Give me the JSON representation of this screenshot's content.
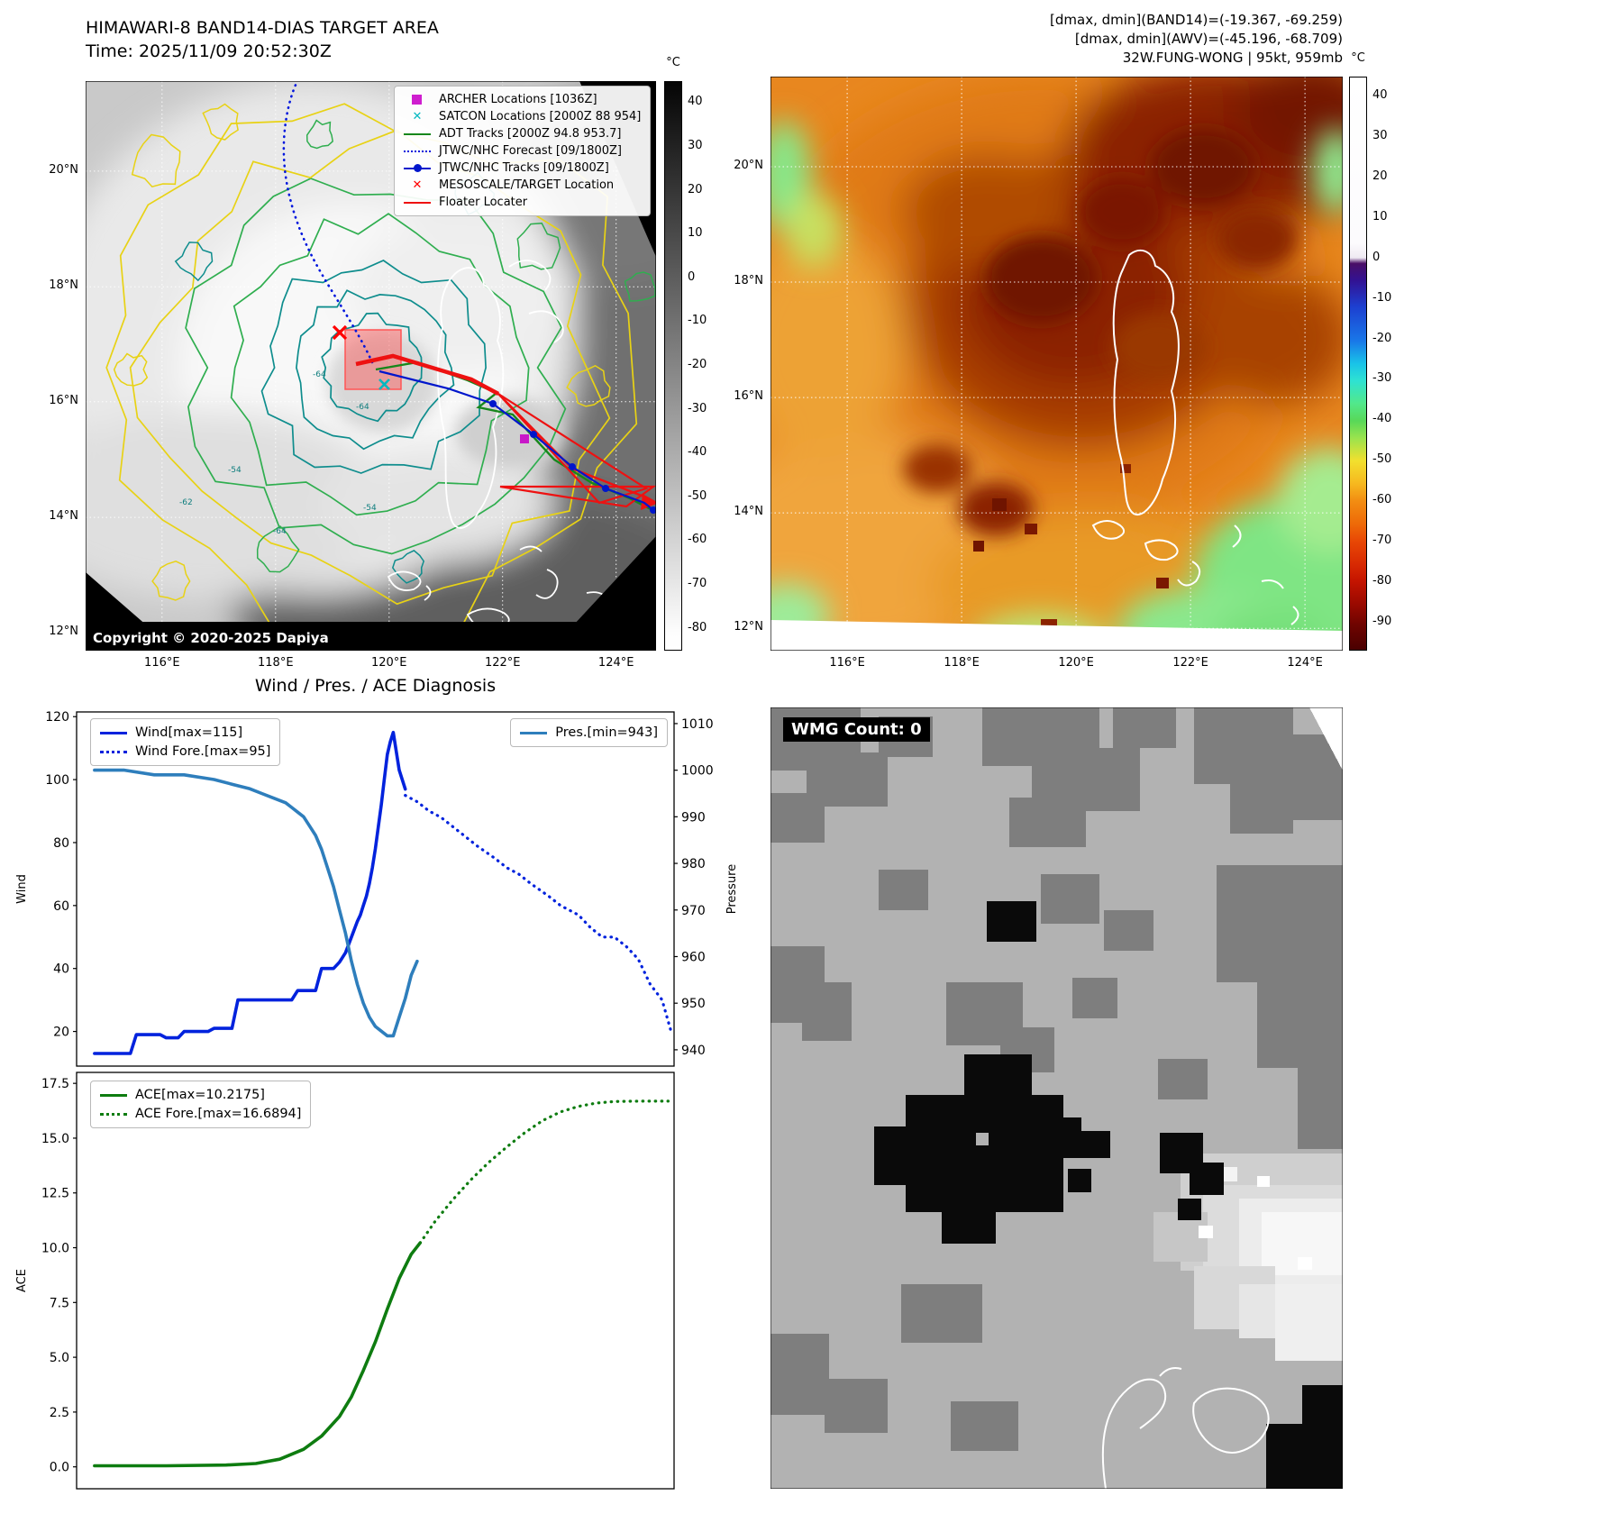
{
  "band14_panel": {
    "title_line1": "HIMAWARI-8 BAND14-DIAS TARGET AREA",
    "title_line2": "Time: 2025/11/09 20:52:30Z",
    "copyright": "Copyright © 2020-2025 Dapiya",
    "legend": [
      {
        "label": "ARCHER Locations [1036Z]",
        "marker": "square-magenta"
      },
      {
        "label": "SATCON Locations [2000Z 88 954]",
        "marker": "x-cyan"
      },
      {
        "label": "ADT Tracks [2000Z 94.8 953.7]",
        "marker": "line-green"
      },
      {
        "label": "JTWC/NHC Forecast [09/1800Z]",
        "marker": "dotted-blue"
      },
      {
        "label": "JTWC/NHC Tracks [09/1800Z]",
        "marker": "linedot-blue"
      },
      {
        "label": "MESOSCALE/TARGET Location",
        "marker": "x-red"
      },
      {
        "label": "Floater Locater",
        "marker": "line-red"
      }
    ],
    "x_ticks": [
      "116°E",
      "118°E",
      "120°E",
      "122°E",
      "124°E"
    ],
    "y_ticks": [
      "20°N",
      "18°N",
      "16°N",
      "14°N",
      "12°N"
    ],
    "contour_labels": [
      "-64",
      "-64",
      "-54",
      "-54",
      "-62",
      "-64"
    ],
    "colorbar": {
      "unit": "°C",
      "ticks": [
        "40",
        "30",
        "20",
        "10",
        "0",
        "-10",
        "-20",
        "-30",
        "-40",
        "-50",
        "-60",
        "-70",
        "-80"
      ]
    }
  },
  "awv_panel": {
    "header_lines": [
      "[dmax, dmin](BAND14)=(-19.367, -69.259)",
      "[dmax, dmin](AWV)=(-45.196, -68.709)",
      "32W.FUNG-WONG | 95kt, 959mb"
    ],
    "x_ticks": [
      "116°E",
      "118°E",
      "120°E",
      "122°E",
      "124°E"
    ],
    "y_ticks": [
      "20°N",
      "18°N",
      "16°N",
      "14°N",
      "12°N"
    ],
    "colorbar": {
      "unit": "°C",
      "ticks": [
        "40",
        "30",
        "20",
        "10",
        "0",
        "-10",
        "-20",
        "-30",
        "-40",
        "-50",
        "-60",
        "-70",
        "-80",
        "-90"
      ]
    }
  },
  "diagnosis_title": "Wind / Pres. / ACE Diagnosis",
  "wmg_panel": {
    "label": "WMG Count: 0"
  },
  "chart_data": [
    {
      "type": "line",
      "title": "Wind / Pres. / ACE Diagnosis",
      "ylabel_left": "Wind",
      "ylabel_right": "Pressure",
      "xlim": [
        0,
        100
      ],
      "ylim_left": [
        9,
        121.5
      ],
      "ylim_right": [
        936.5,
        1012.5
      ],
      "yticks_left": [
        "20",
        "40",
        "60",
        "80",
        "100",
        "120"
      ],
      "yticks_right": [
        "940",
        "950",
        "960",
        "970",
        "980",
        "990",
        "1000",
        "1010"
      ],
      "grid": false,
      "series": [
        {
          "name": "Wind[max=115]",
          "axis": "left",
          "dash": "solid",
          "color": "#0022dd",
          "width": 3.6,
          "x": [
            3,
            9,
            10,
            14,
            15,
            17,
            18,
            22,
            23,
            26,
            27,
            36,
            37,
            40,
            41,
            43,
            44,
            45,
            46,
            47,
            47.5,
            48,
            48.5,
            49,
            49.5,
            50,
            50.5,
            51,
            51.5,
            52,
            52.5,
            53,
            54,
            55
          ],
          "y": [
            13,
            13,
            19,
            19,
            18,
            18,
            20,
            20,
            21,
            21,
            30,
            30,
            33,
            33,
            40,
            40,
            42,
            45,
            50,
            55,
            57,
            60,
            63,
            67,
            72,
            78,
            85,
            92,
            100,
            108,
            112,
            115,
            103,
            97
          ]
        },
        {
          "name": "Wind Fore.[max=95]",
          "axis": "left",
          "dash": "dotted",
          "color": "#0022dd",
          "width": 3.2,
          "x": [
            55,
            57,
            59,
            61,
            63,
            65,
            67,
            70,
            72,
            74,
            76,
            79,
            81,
            84,
            86,
            88,
            90,
            92,
            94,
            96,
            98,
            99.5
          ],
          "y": [
            95,
            93,
            90,
            88,
            85,
            82,
            79,
            75,
            72,
            70,
            67,
            63,
            60,
            57,
            53,
            50,
            50,
            47,
            43,
            35,
            30,
            20
          ]
        },
        {
          "name": "Pres.[min=943]",
          "axis": "right",
          "dash": "solid",
          "color": "#2e7ebc",
          "width": 3.6,
          "x": [
            3,
            8,
            13,
            18,
            23,
            26,
            29,
            31,
            33,
            35,
            36,
            37,
            38,
            39,
            40,
            41,
            42,
            43,
            44,
            45,
            46,
            47,
            48,
            49,
            50,
            51,
            52,
            53,
            54,
            55,
            56,
            57
          ],
          "y": [
            1000,
            1000,
            999,
            999,
            998,
            997,
            996,
            995,
            994,
            993,
            992,
            991,
            990,
            988,
            986,
            983,
            979,
            975,
            970,
            965,
            959,
            954,
            950,
            947,
            945,
            944,
            943,
            943,
            947,
            951,
            956,
            959
          ]
        }
      ]
    },
    {
      "type": "line",
      "ylabel_left": "ACE",
      "xlim": [
        0,
        100
      ],
      "ylim_left": [
        -1,
        18
      ],
      "yticks_left": [
        "0.0",
        "2.5",
        "5.0",
        "7.5",
        "10.0",
        "12.5",
        "15.0",
        "17.5"
      ],
      "grid": false,
      "series": [
        {
          "name": "ACE[max=10.2175]",
          "axis": "left",
          "dash": "solid",
          "color": "#0e7c10",
          "width": 3.6,
          "x": [
            3,
            15,
            25,
            30,
            34,
            38,
            41,
            44,
            46,
            48,
            50,
            52,
            54,
            56,
            57.5
          ],
          "y": [
            0.05,
            0.05,
            0.08,
            0.15,
            0.35,
            0.8,
            1.4,
            2.3,
            3.2,
            4.4,
            5.7,
            7.2,
            8.6,
            9.7,
            10.22
          ]
        },
        {
          "name": "ACE Fore.[max=16.6894]",
          "axis": "left",
          "dash": "dotted",
          "color": "#0e7c10",
          "width": 3.2,
          "x": [
            57.5,
            60,
            63,
            66,
            69,
            72,
            75,
            78,
            81,
            84,
            87,
            90,
            94,
            99
          ],
          "y": [
            10.22,
            11.2,
            12.2,
            13.1,
            13.9,
            14.6,
            15.25,
            15.8,
            16.2,
            16.45,
            16.6,
            16.67,
            16.69,
            16.69
          ]
        }
      ]
    }
  ]
}
